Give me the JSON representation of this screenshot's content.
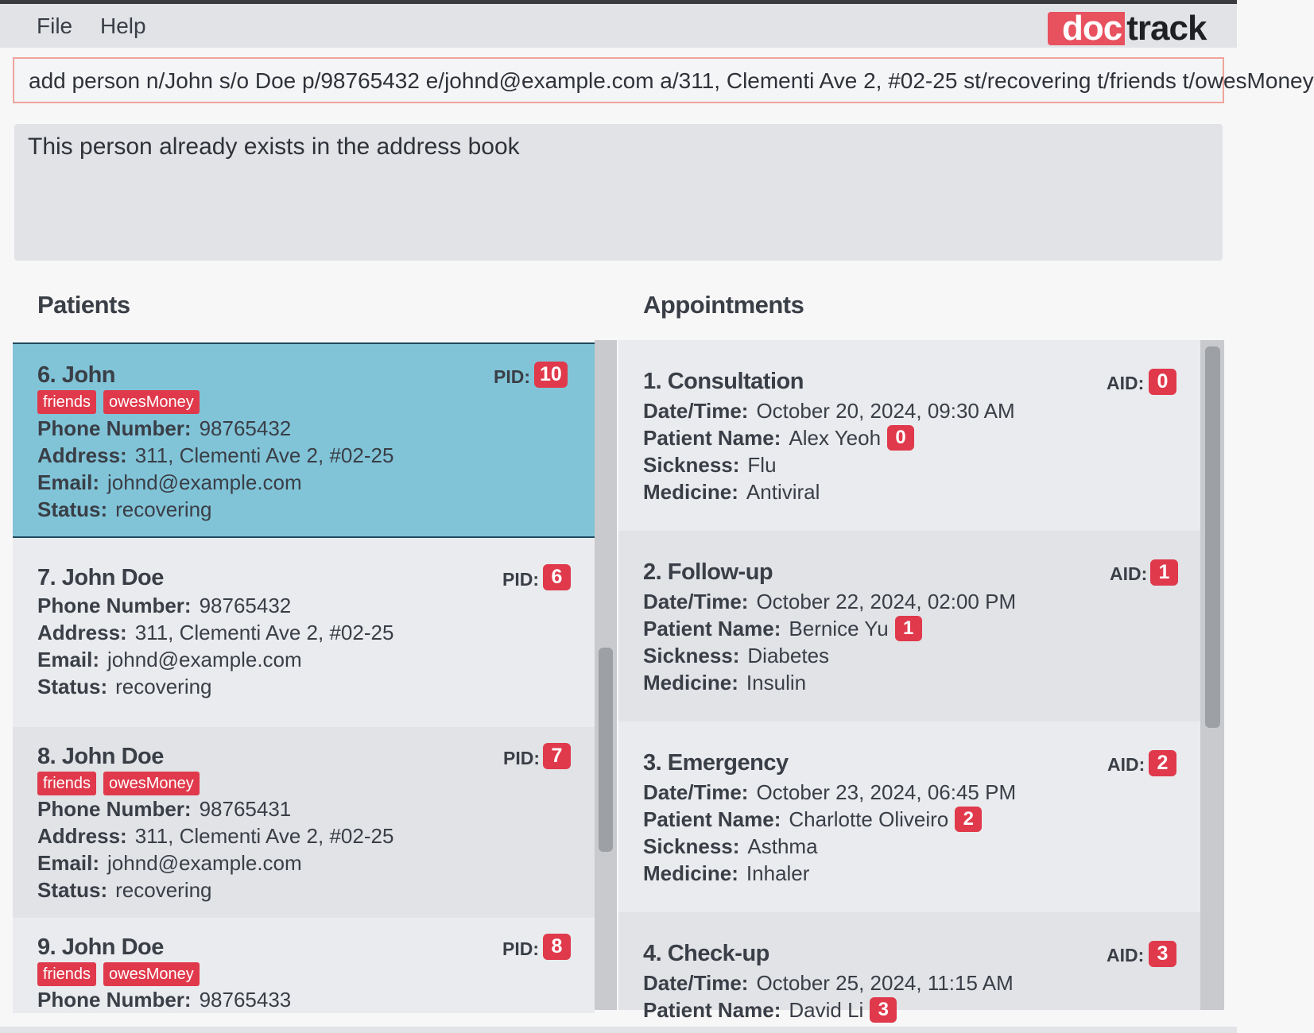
{
  "menu": {
    "file": "File",
    "help": "Help"
  },
  "logo": {
    "part1": "doc",
    "part2": "track"
  },
  "command_box": {
    "value": "add person n/John s/o Doe p/98765432 e/johnd@example.com a/311, Clementi Ave 2, #02-25 st/recovering t/friends t/owesMoney"
  },
  "result_display": {
    "text": "This person already exists in the address book"
  },
  "patients": {
    "title": "Patients",
    "id_label": "PID:",
    "field_labels": {
      "phone": "Phone Number:",
      "address": "Address:",
      "email": "Email:",
      "status": "Status:"
    },
    "items": [
      {
        "title": "6. John",
        "pid": "10",
        "tags": [
          "friends",
          "owesMoney"
        ],
        "phone": "98765432",
        "address": "311, Clementi Ave 2, #02-25",
        "email": "johnd@example.com",
        "status": "recovering",
        "selected": true
      },
      {
        "title": "7. John Doe",
        "pid": "6",
        "tags": [],
        "phone": "98765432",
        "address": "311, Clementi Ave 2, #02-25",
        "email": "johnd@example.com",
        "status": "recovering"
      },
      {
        "title": "8. John Doe",
        "pid": "7",
        "tags": [
          "friends",
          "owesMoney"
        ],
        "phone": "98765431",
        "address": "311, Clementi Ave 2, #02-25",
        "email": "johnd@example.com",
        "status": "recovering"
      },
      {
        "title": "9. John Doe",
        "pid": "8",
        "tags": [
          "friends",
          "owesMoney"
        ],
        "phone": "98765433"
      }
    ]
  },
  "appointments": {
    "title": "Appointments",
    "id_label": "AID:",
    "field_labels": {
      "datetime": "Date/Time:",
      "patient": "Patient Name:",
      "sickness": "Sickness:",
      "medicine": "Medicine:"
    },
    "items": [
      {
        "title": "1. Consultation",
        "aid": "0",
        "datetime": "October 20, 2024, 09:30 AM",
        "patient": "Alex Yeoh",
        "patient_id": "0",
        "sickness": "Flu",
        "medicine": "Antiviral"
      },
      {
        "title": "2. Follow-up",
        "aid": "1",
        "datetime": "October 22, 2024, 02:00 PM",
        "patient": "Bernice Yu",
        "patient_id": "1",
        "sickness": "Diabetes",
        "medicine": "Insulin"
      },
      {
        "title": "3. Emergency",
        "aid": "2",
        "datetime": "October 23, 2024, 06:45 PM",
        "patient": "Charlotte Oliveiro",
        "patient_id": "2",
        "sickness": "Asthma",
        "medicine": "Inhaler"
      },
      {
        "title": "4. Check-up",
        "aid": "3",
        "datetime": "October 25, 2024, 11:15 AM",
        "patient": "David Li",
        "patient_id": "3"
      }
    ]
  },
  "colors": {
    "accent_badge": "#e0394b",
    "selected_card": "#81c4d8",
    "logo_red": "#e8525f"
  }
}
